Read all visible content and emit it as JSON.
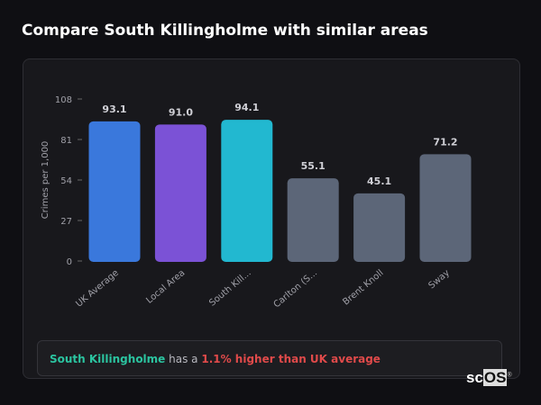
{
  "title": "Compare South Killingholme with similar areas",
  "chart_data": {
    "type": "bar",
    "categories": [
      "UK Average",
      "Local Area",
      "South Kill...",
      "Carlton (S...",
      "Brent Knoll",
      "Sway"
    ],
    "values": [
      93.1,
      91.0,
      94.1,
      55.1,
      45.1,
      71.2
    ],
    "colors": [
      "#3a78dc",
      "#7b52d6",
      "#22b8d0",
      "#5c6678",
      "#5c6678",
      "#5c6678"
    ],
    "ylabel": "Crimes per 1,000",
    "ylim": [
      0,
      108
    ],
    "yticks": [
      0,
      27,
      54,
      81,
      108
    ],
    "grid": false
  },
  "summary": {
    "area": "South Killingholme",
    "middle": " has a ",
    "highlight": "1.1% higher than UK average"
  },
  "logo": {
    "a": "sc",
    "b": "OS",
    "mark": "®"
  }
}
